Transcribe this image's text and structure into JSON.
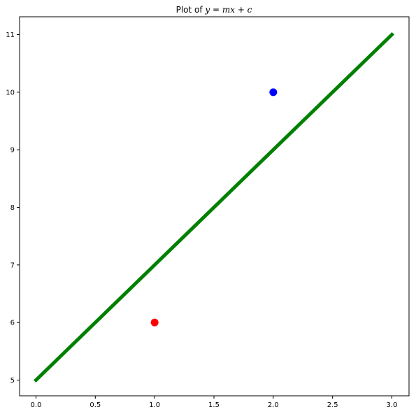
{
  "chart_data": {
    "type": "line",
    "title": {
      "prefix": "Plot of ",
      "math": "y = mx + c"
    },
    "xlabel": "",
    "ylabel": "",
    "xlim": [
      -0.15,
      3.15
    ],
    "ylim": [
      4.7,
      11.3
    ],
    "grid": false,
    "x_ticks": [
      0.0,
      0.5,
      1.0,
      1.5,
      2.0,
      2.5,
      3.0
    ],
    "x_tick_labels": [
      "0.0",
      "0.5",
      "1.0",
      "1.5",
      "2.0",
      "2.5",
      "3.0"
    ],
    "y_ticks": [
      5,
      6,
      7,
      8,
      9,
      10,
      11
    ],
    "y_tick_labels": [
      "5",
      "6",
      "7",
      "8",
      "9",
      "10",
      "11"
    ],
    "series": [
      {
        "kind": "line",
        "color": "#008000",
        "x": [
          0,
          3
        ],
        "y": [
          5,
          11
        ]
      },
      {
        "kind": "point",
        "color": "#ff0000",
        "x": [
          1.0
        ],
        "y": [
          6.0
        ]
      },
      {
        "kind": "point",
        "color": "#0000ff",
        "x": [
          2.0
        ],
        "y": [
          10.0
        ]
      }
    ]
  }
}
